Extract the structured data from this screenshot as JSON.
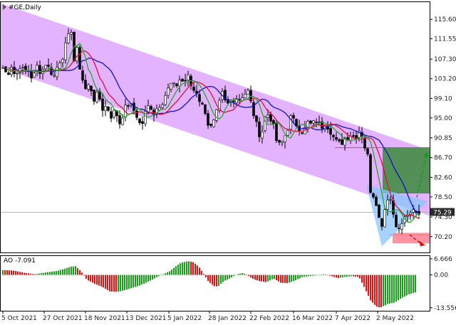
{
  "header": {
    "symbol_label": "#GE,Daily"
  },
  "ao_panel": {
    "label": "AO -7.091"
  },
  "current_price_label": "75.29",
  "colors": {
    "channel": "#e3b3ff",
    "bull_candle": "#000000",
    "ma_fast": "#22aa22",
    "ma_mid": "#dd1133",
    "ma_slow": "#1111cc",
    "ao_up": "#18a018",
    "ao_down": "#e01010",
    "target_box": "#3a8a3a",
    "pattern_triangle": "#88c4ff",
    "stop_box": "#ff8090",
    "price_tag_bg": "#2b2b2b"
  },
  "chart_data": [
    {
      "type": "candlestick",
      "title": "#GE,Daily",
      "ylim": [
        66.9,
        119.2
      ],
      "y_ticks": [
        "115.60",
        "111.55",
        "107.30",
        "103.20",
        "99.10",
        "95.00",
        "90.85",
        "86.70",
        "82.60",
        "78.50",
        "74.30",
        "70.20"
      ],
      "x_ticks": [
        "5 Oct 2021",
        "27 Oct 2021",
        "18 Nov 2021",
        "13 Dec 2021",
        "5 Jan 2022",
        "28 Jan 2022",
        "22 Feb 2022",
        "16 Mar 2022",
        "7 Apr 2022",
        "2 May 2022"
      ],
      "last_price": 75.29,
      "close_path": [
        [
          0,
          105.5
        ],
        [
          6,
          104
        ],
        [
          12,
          106
        ],
        [
          18,
          103.5
        ],
        [
          24,
          106
        ],
        [
          30,
          104.5
        ],
        [
          36,
          105
        ],
        [
          42,
          103
        ],
        [
          48,
          105.8
        ],
        [
          54,
          104.5
        ],
        [
          60,
          106.5
        ],
        [
          66,
          105
        ],
        [
          72,
          103.8
        ],
        [
          78,
          106.5
        ],
        [
          84,
          108
        ],
        [
          90,
          111
        ],
        [
          96,
          113.5
        ],
        [
          100,
          107
        ],
        [
          104,
          109
        ],
        [
          110,
          104
        ],
        [
          116,
          101
        ],
        [
          122,
          102
        ],
        [
          128,
          99
        ],
        [
          134,
          100
        ],
        [
          140,
          97
        ],
        [
          146,
          97.5
        ],
        [
          152,
          95.5
        ],
        [
          158,
          96.5
        ],
        [
          164,
          94
        ],
        [
          170,
          96.5
        ],
        [
          176,
          98
        ],
        [
          182,
          97
        ],
        [
          188,
          95.5
        ],
        [
          194,
          93
        ],
        [
          200,
          96
        ],
        [
          206,
          98
        ],
        [
          212,
          96
        ],
        [
          218,
          97.5
        ],
        [
          224,
          98.5
        ],
        [
          230,
          100.5
        ],
        [
          236,
          102
        ],
        [
          242,
          101.5
        ],
        [
          248,
          103
        ],
        [
          254,
          102.5
        ],
        [
          260,
          103.5
        ],
        [
          266,
          101
        ],
        [
          272,
          100.5
        ],
        [
          278,
          98
        ],
        [
          284,
          96.5
        ],
        [
          290,
          92.5
        ],
        [
          296,
          94
        ],
        [
          302,
          97
        ],
        [
          308,
          100
        ],
        [
          314,
          97.5
        ],
        [
          320,
          98.5
        ],
        [
          326,
          99.5
        ],
        [
          332,
          99
        ],
        [
          338,
          100
        ],
        [
          344,
          100.5
        ],
        [
          350,
          97
        ],
        [
          356,
          93.5
        ],
        [
          362,
          91
        ],
        [
          368,
          95
        ],
        [
          374,
          96
        ],
        [
          380,
          93
        ],
        [
          386,
          89
        ],
        [
          392,
          90
        ],
        [
          398,
          92
        ],
        [
          404,
          95
        ],
        [
          410,
          94
        ],
        [
          416,
          93
        ],
        [
          422,
          92
        ],
        [
          428,
          94
        ],
        [
          434,
          93.5
        ],
        [
          440,
          94.5
        ],
        [
          446,
          93
        ],
        [
          452,
          94
        ],
        [
          458,
          93
        ],
        [
          464,
          91
        ],
        [
          470,
          89.5
        ],
        [
          476,
          90
        ],
        [
          482,
          91
        ],
        [
          488,
          91.5
        ],
        [
          494,
          91
        ],
        [
          500,
          92.5
        ],
        [
          504,
          91.5
        ],
        [
          508,
          89
        ],
        [
          512,
          87
        ],
        [
          516,
          80
        ],
        [
          520,
          79
        ],
        [
          524,
          77.5
        ],
        [
          528,
          74
        ],
        [
          532,
          73
        ],
        [
          536,
          76
        ],
        [
          540,
          78.5
        ],
        [
          544,
          78
        ],
        [
          548,
          75
        ],
        [
          552,
          73
        ],
        [
          556,
          71.5
        ],
        [
          560,
          73
        ],
        [
          564,
          74
        ],
        [
          568,
          75
        ],
        [
          572,
          74.5
        ],
        [
          576,
          75.5
        ],
        [
          580,
          75
        ],
        [
          585,
          75.29
        ]
      ],
      "annotations": [
        {
          "type": "ascending_channel_band",
          "text": ""
        },
        {
          "type": "target_box",
          "from_price": 79.3,
          "to_price": 88.8
        },
        {
          "type": "stop_box",
          "from_price": 68.8,
          "to_price": 71.0
        },
        {
          "type": "arrow_up",
          "from_price": 78.4,
          "to_price": 87.8
        },
        {
          "type": "arrow_down",
          "from_price": 70.6,
          "to_price": 68.6
        },
        {
          "type": "price_levels",
          "values": [
            88.8,
            79.3,
            70.6
          ]
        }
      ]
    },
    {
      "type": "bar",
      "title": "AO -7.091",
      "indicator": "Awesome Oscillator",
      "last_value": -7.091,
      "ylim": [
        -14.8,
        7.8
      ],
      "y_ticks": [
        "6.666",
        "0.00",
        "-13.556"
      ],
      "shape": [
        [
          0,
          2.0
        ],
        [
          15,
          1.8
        ],
        [
          30,
          0.9
        ],
        [
          45,
          0.3
        ],
        [
          60,
          1.0
        ],
        [
          75,
          1.6
        ],
        [
          85,
          2.4
        ],
        [
          95,
          3.4
        ],
        [
          102,
          3.6
        ],
        [
          110,
          1.4
        ],
        [
          118,
          -2.0
        ],
        [
          130,
          -3.8
        ],
        [
          140,
          -5.0
        ],
        [
          150,
          -6.8
        ],
        [
          160,
          -7.0
        ],
        [
          170,
          -6.4
        ],
        [
          180,
          -5.5
        ],
        [
          190,
          -4.6
        ],
        [
          200,
          -3.4
        ],
        [
          210,
          -1.9
        ],
        [
          218,
          -0.6
        ],
        [
          226,
          0.4
        ],
        [
          234,
          1.5
        ],
        [
          242,
          3.4
        ],
        [
          250,
          5.0
        ],
        [
          260,
          5.7
        ],
        [
          268,
          5.2
        ],
        [
          276,
          3.0
        ],
        [
          282,
          0.4
        ],
        [
          288,
          -2.5
        ],
        [
          296,
          -4.6
        ],
        [
          302,
          -4.8
        ],
        [
          310,
          -2.6
        ],
        [
          320,
          -1.2
        ],
        [
          328,
          0.2
        ],
        [
          336,
          0.8
        ],
        [
          344,
          -0.3
        ],
        [
          352,
          -1.8
        ],
        [
          360,
          -2.5
        ],
        [
          370,
          -3.0
        ],
        [
          380,
          -1.5
        ],
        [
          390,
          -3.2
        ],
        [
          400,
          -3.4
        ],
        [
          410,
          -2.3
        ],
        [
          420,
          -0.9
        ],
        [
          430,
          -0.5
        ],
        [
          440,
          -0.2
        ],
        [
          450,
          0.3
        ],
        [
          460,
          -0.4
        ],
        [
          470,
          -1.3
        ],
        [
          480,
          -0.8
        ],
        [
          490,
          -0.5
        ],
        [
          500,
          -0.9
        ],
        [
          508,
          -5.5
        ],
        [
          516,
          -10.5
        ],
        [
          524,
          -13.0
        ],
        [
          530,
          -13.5
        ],
        [
          540,
          -12.0
        ],
        [
          550,
          -11.4
        ],
        [
          560,
          -9.5
        ],
        [
          570,
          -8.0
        ],
        [
          580,
          -7.091
        ]
      ]
    }
  ]
}
